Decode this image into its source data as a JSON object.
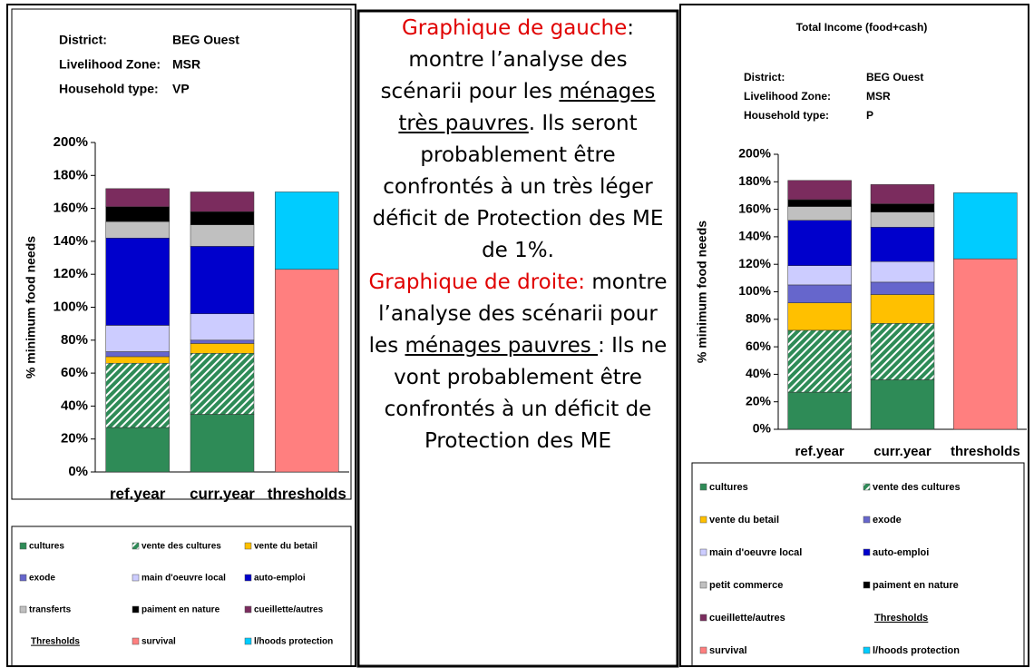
{
  "chart_data": [
    {
      "type": "stacked_bar",
      "info": [
        {
          "label": "District:",
          "value": "BEG Ouest"
        },
        {
          "label": "Livelihood Zone:",
          "value": "MSR"
        },
        {
          "label": "Household type:",
          "value": "VP"
        }
      ],
      "ylabel": "% minimum food needs",
      "categories": [
        "ref.year",
        "curr.year",
        "thresholds"
      ],
      "ylim": [
        0,
        200
      ],
      "yticks": [
        {
          "value": 0,
          "label": "0%"
        },
        {
          "value": 20,
          "label": "20%"
        },
        {
          "value": 40,
          "label": "40%"
        },
        {
          "value": 60,
          "label": "60%"
        },
        {
          "value": 80,
          "label": "80%"
        },
        {
          "value": 100,
          "label": "100%"
        },
        {
          "value": 120,
          "label": "120%"
        },
        {
          "value": 140,
          "label": "140%"
        },
        {
          "value": 160,
          "label": "160%"
        },
        {
          "value": 180,
          "label": "180%"
        },
        {
          "value": 200,
          "label": "200%"
        }
      ],
      "legend_heading": "Thresholds",
      "series": [
        {
          "name": "cultures",
          "color": "#2e8b57",
          "values": [
            27,
            35,
            null
          ]
        },
        {
          "name": "vente des cultures",
          "color": "#2e8b57",
          "pattern": "diagonal",
          "values": [
            39,
            37,
            null
          ]
        },
        {
          "name": "vente du betail",
          "color": "#ffc000",
          "values": [
            4,
            6,
            null
          ]
        },
        {
          "name": "exode",
          "color": "#6666cc",
          "values": [
            3,
            2,
            null
          ]
        },
        {
          "name": "main d'oeuvre local",
          "color": "#ccccff",
          "values": [
            16,
            16,
            null
          ]
        },
        {
          "name": "auto-emploi",
          "color": "#0000cc",
          "values": [
            53,
            41,
            null
          ]
        },
        {
          "name": "transferts",
          "color": "#c0c0c0",
          "values": [
            10,
            13,
            null
          ]
        },
        {
          "name": "paiment en nature",
          "color": "#000000",
          "values": [
            9,
            8,
            null
          ]
        },
        {
          "name": "cueillette/autres",
          "color": "#7b2c5e",
          "values": [
            11,
            12,
            null
          ]
        },
        {
          "name": "survival",
          "color": "#ff7f7f",
          "values": [
            null,
            null,
            123
          ]
        },
        {
          "name": "l/hoods protection",
          "color": "#00ccff",
          "values": [
            null,
            null,
            47
          ]
        }
      ]
    },
    {
      "type": "stacked_bar",
      "title": "Total Income (food+cash)",
      "info": [
        {
          "label": "District:",
          "value": "BEG Ouest"
        },
        {
          "label": "Livelihood Zone:",
          "value": "MSR"
        },
        {
          "label": "Household type:",
          "value": "P"
        }
      ],
      "ylabel": "% minimum food needs",
      "categories": [
        "ref.year",
        "curr.year",
        "thresholds"
      ],
      "ylim": [
        0,
        200
      ],
      "yticks": [
        {
          "value": 0,
          "label": "0%"
        },
        {
          "value": 20,
          "label": "20%"
        },
        {
          "value": 40,
          "label": "40%"
        },
        {
          "value": 60,
          "label": "60%"
        },
        {
          "value": 80,
          "label": "80%"
        },
        {
          "value": 100,
          "label": "100%"
        },
        {
          "value": 120,
          "label": "120%"
        },
        {
          "value": 140,
          "label": "140%"
        },
        {
          "value": 160,
          "label": "160%"
        },
        {
          "value": 180,
          "label": "180%"
        },
        {
          "value": 200,
          "label": "200%"
        }
      ],
      "legend_heading": "Thresholds",
      "series": [
        {
          "name": "cultures",
          "color": "#2e8b57",
          "values": [
            27,
            36,
            null
          ]
        },
        {
          "name": "vente des cultures",
          "color": "#2e8b57",
          "pattern": "diagonal",
          "values": [
            45,
            41,
            null
          ]
        },
        {
          "name": "vente du betail",
          "color": "#ffc000",
          "values": [
            20,
            21,
            null
          ]
        },
        {
          "name": "exode",
          "color": "#6666cc",
          "values": [
            13,
            9,
            null
          ]
        },
        {
          "name": "main d'oeuvre local",
          "color": "#ccccff",
          "values": [
            14,
            15,
            null
          ]
        },
        {
          "name": "auto-emploi",
          "color": "#0000cc",
          "values": [
            33,
            25,
            null
          ]
        },
        {
          "name": "petit commerce",
          "color": "#c0c0c0",
          "values": [
            10,
            11,
            null
          ]
        },
        {
          "name": "paiment en nature",
          "color": "#000000",
          "values": [
            5,
            6,
            null
          ]
        },
        {
          "name": "cueillette/autres",
          "color": "#7b2c5e",
          "values": [
            14,
            14,
            null
          ]
        },
        {
          "name": "survival",
          "color": "#ff7f7f",
          "values": [
            null,
            null,
            124
          ]
        },
        {
          "name": "l/hoods protection",
          "color": "#00ccff",
          "values": [
            null,
            null,
            48
          ]
        }
      ]
    }
  ],
  "text_panel": {
    "paragraphs": [
      [
        {
          "text": "Graphique de gauche",
          "style": "red"
        },
        {
          "text": ": montre l’analyse des scénarii pour les "
        },
        {
          "text": "ménages très pauvres",
          "style": "underline"
        },
        {
          "text": ". Ils seront probablement être confrontés à un très léger déficit de Protection des ME de 1%."
        }
      ],
      [
        {
          "text": "Graphique de droite:",
          "style": "red"
        },
        {
          "text": " montre l’analyse des scénarii pour les "
        },
        {
          "text": "ménages pauvres ",
          "style": "underline"
        },
        {
          "text": ": Ils ne vont probablement être confrontés à un déficit de Protection des ME"
        }
      ]
    ]
  }
}
